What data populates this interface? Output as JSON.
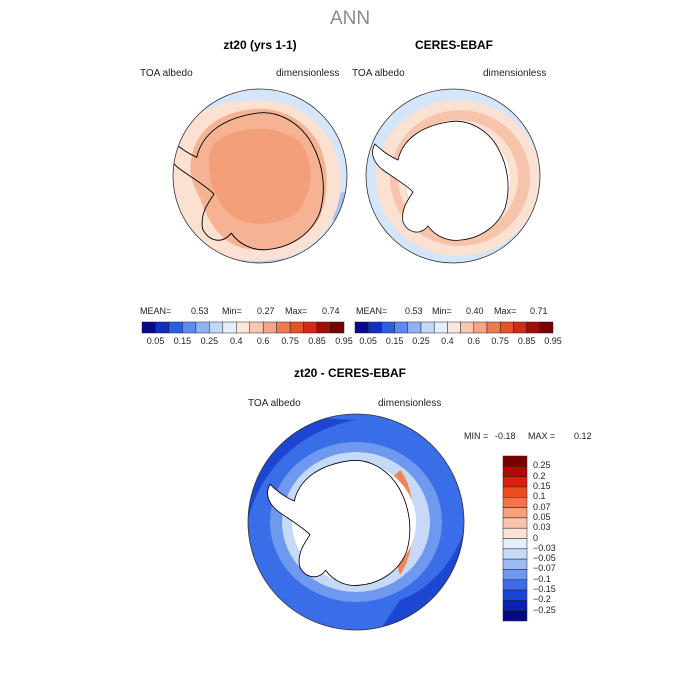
{
  "title": "ANN",
  "panels": [
    {
      "title": "zt20 (yrs 1-1)",
      "variable": "TOA albedo",
      "units": "dimensionless",
      "mean_label": "MEAN=",
      "mean": "0.53",
      "min_label": "Min=",
      "min": "0.27",
      "max_label": "Max=",
      "max": "0.74"
    },
    {
      "title": "CERES-EBAF",
      "variable": "TOA albedo",
      "units": "dimensionless",
      "mean_label": "MEAN=",
      "mean": "0.53",
      "min_label": "Min=",
      "min": "0.40",
      "max_label": "Max=",
      "max": "0.71"
    }
  ],
  "top_colorbar": {
    "labels": [
      "0.05",
      "0.15",
      "0.25",
      "0.4",
      "0.6",
      "0.75",
      "0.85",
      "0.95"
    ],
    "colors": [
      "#08088a",
      "#0f2fc4",
      "#2a5ee8",
      "#5b8af0",
      "#8fb2f4",
      "#c3d8f8",
      "#e6eefb",
      "#fbe7dc",
      "#f8c7b0",
      "#f4a587",
      "#ef7a52",
      "#e8502a",
      "#d22a14",
      "#a40c06",
      "#780000"
    ]
  },
  "diff_panel": {
    "title": "zt20 - CERES-EBAF",
    "variable": "TOA albedo",
    "units": "dimensionless",
    "min_label": "MIN =",
    "min": "-0.18",
    "max_label": "MAX =",
    "max": "0.12"
  },
  "diff_colorbar": {
    "labels": [
      "0.25",
      "0.2",
      "0.15",
      "0.1",
      "0.07",
      "0.05",
      "0.03",
      "0",
      "−0.03",
      "−0.05",
      "−0.07",
      "−0.1",
      "−0.15",
      "−0.2",
      "−0.25"
    ],
    "colors": [
      "#7a0000",
      "#b00a05",
      "#d8200c",
      "#ee4a20",
      "#f4744a",
      "#f6a07e",
      "#f8c4ad",
      "#fbe2d5",
      "#e6eefb",
      "#c6d9f7",
      "#9dbcf3",
      "#6f98ef",
      "#3f6de9",
      "#1a44d6",
      "#0a22b4",
      "#050a82"
    ]
  },
  "colors": {
    "ocean_light": "#d5e6fb",
    "ocean_mid": "#bcd3f6",
    "ocean_deep": "#a8c2f2",
    "land_orange": "#f6b394",
    "land_orange_dark": "#f3a07a",
    "ring_light": "#fbe1d2",
    "diff_blue": "#3a6de8",
    "diff_blue_dark": "#1d47d3",
    "diff_red": "#ef8457"
  }
}
